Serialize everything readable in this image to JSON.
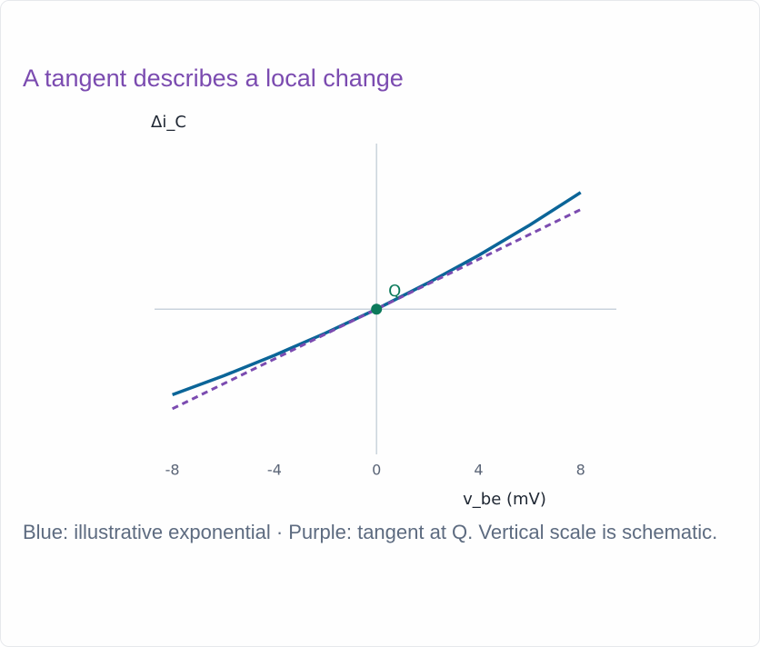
{
  "chart_data": {
    "type": "line",
    "title": "A tangent describes a local change",
    "x_label": "v_be (mV)",
    "y_label": "Δi_C",
    "caption": "Blue: illustrative exponential · Purple: tangent at Q. Vertical scale is schematic.",
    "xlim": [
      -8.7,
      9.4
    ],
    "ylim": [
      -5.7,
      6.5
    ],
    "xticks": [
      -8,
      -4,
      0,
      4,
      8
    ],
    "axis_color": "#c9d3dc",
    "series": [
      {
        "color": "#0b6598",
        "dash": false,
        "x": [
          -8,
          -6,
          -4,
          -2,
          0,
          2,
          4,
          6,
          8
        ],
        "values": [
          -3.36,
          -2.62,
          -1.81,
          -0.94,
          0,
          1.02,
          2.11,
          3.3,
          4.58
        ]
      },
      {
        "color": "#7b4bb0",
        "dash": true,
        "x": [
          -8,
          8
        ],
        "values": [
          -3.91,
          3.91
        ]
      }
    ],
    "point": {
      "label": "Q",
      "x": 0,
      "y": 0,
      "color": "#0c7a5b"
    }
  }
}
